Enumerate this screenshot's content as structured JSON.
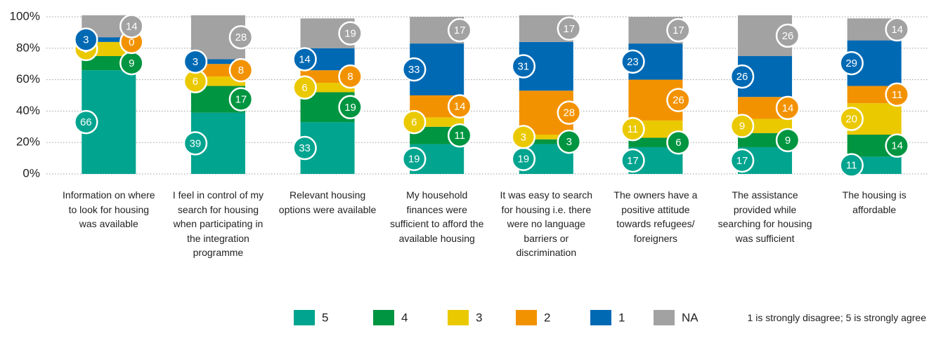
{
  "chart_data": {
    "type": "stacked_bar",
    "categories": [
      "Information on where to look for housing was available",
      "I feel in control of my search for housing when participating in the integration programme",
      "Relevant housing options were available",
      "My household finances were sufficient to afford the available housing",
      "It was easy to search for housing i.e. there were no language barriers or discrimination",
      "The owners have a positive attitude towards refugees/ foreigners",
      "The assistance provided while searching for housing was sufficient",
      "The housing is affordable"
    ],
    "series": [
      {
        "name": "5",
        "color": "#00a48f",
        "values": [
          66,
          39,
          33,
          19,
          19,
          17,
          17,
          11
        ]
      },
      {
        "name": "4",
        "color": "#009540",
        "values": [
          9,
          17,
          19,
          11,
          3,
          6,
          9,
          14
        ]
      },
      {
        "name": "3",
        "color": "#ebc900",
        "values": [
          9,
          6,
          6,
          6,
          3,
          11,
          9,
          20
        ]
      },
      {
        "name": "2",
        "color": "#f39200",
        "values": [
          0,
          8,
          8,
          14,
          28,
          26,
          14,
          11
        ]
      },
      {
        "name": "1",
        "color": "#0069b4",
        "values": [
          3,
          3,
          14,
          33,
          31,
          23,
          26,
          29
        ]
      },
      {
        "name": "NA",
        "color": "#a2a2a2",
        "values": [
          14,
          28,
          19,
          17,
          17,
          17,
          26,
          14
        ]
      }
    ],
    "ylim": [
      0,
      100
    ],
    "yticks": [
      {
        "value": 0,
        "label": "0%"
      },
      {
        "value": 20,
        "label": "20%"
      },
      {
        "value": 40,
        "label": "40%"
      },
      {
        "value": 60,
        "label": "60%"
      },
      {
        "value": 80,
        "label": "80%"
      },
      {
        "value": 100,
        "label": "100%"
      }
    ],
    "grid": true,
    "note": "1 is strongly disagree; 5 is strongly agree"
  }
}
